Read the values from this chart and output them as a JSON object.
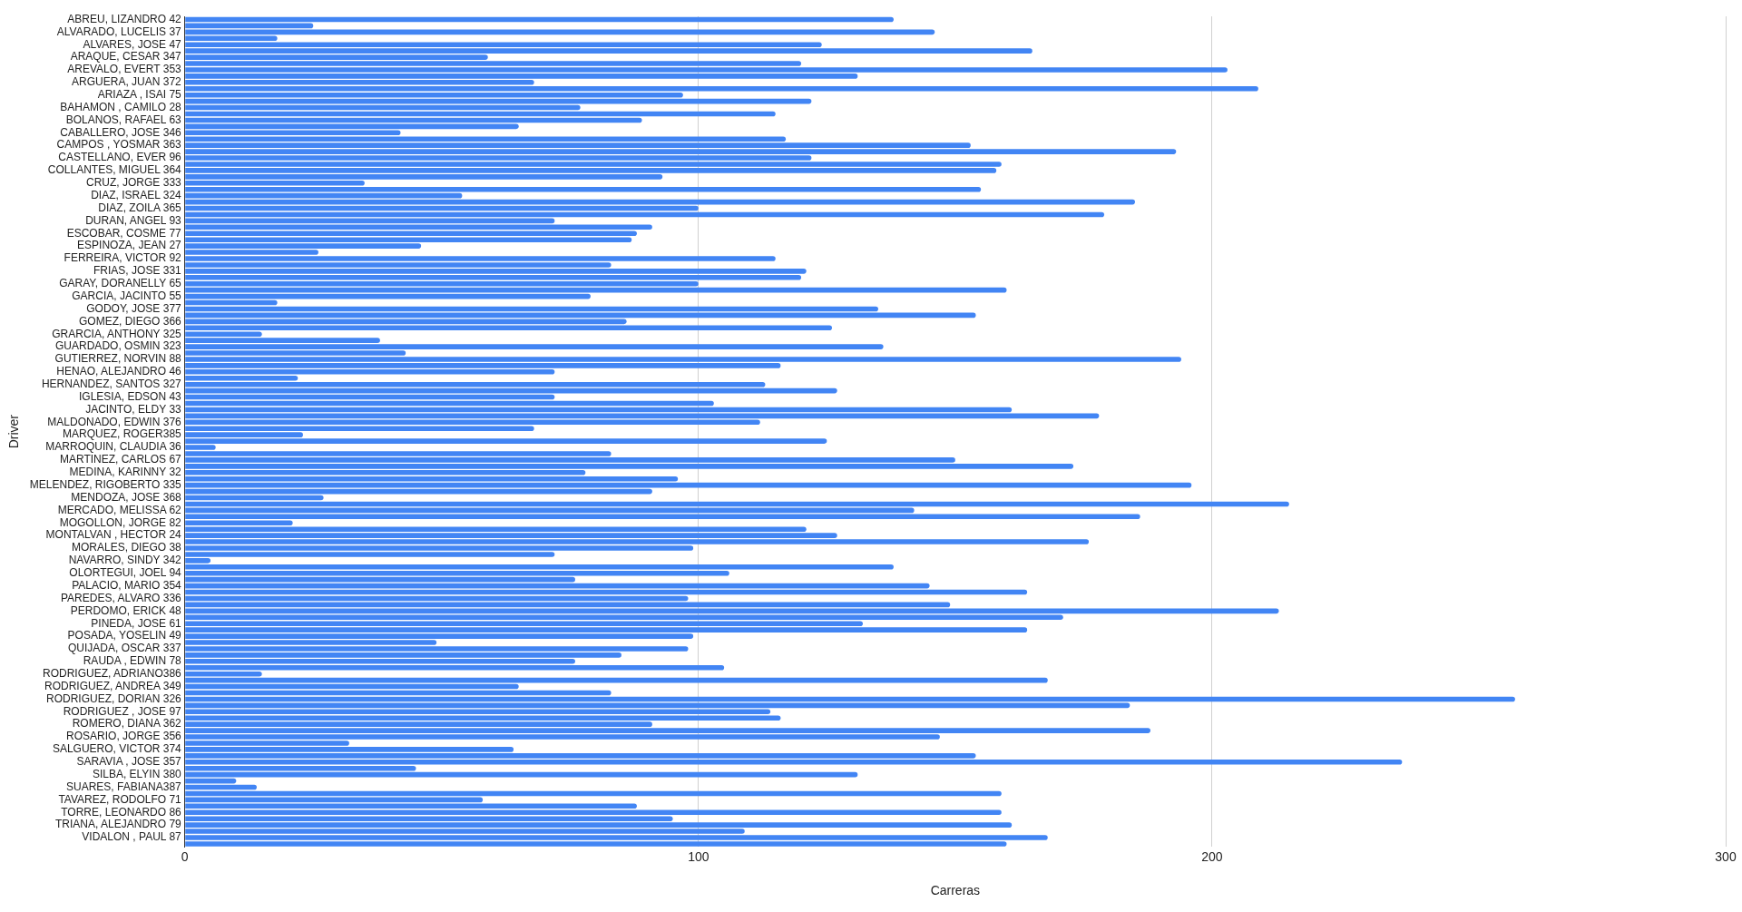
{
  "chart_data": {
    "type": "bar",
    "orientation": "horizontal",
    "xlabel": "Carreras",
    "ylabel": "Driver",
    "categories": [
      "ABREU, LIZANDRO 42",
      null,
      "ALVARADO, LUCELIS 37",
      null,
      "ALVARES, JOSE 47",
      null,
      "ARAQUE, CESAR 347",
      null,
      "AREVALO, EVERT 353",
      null,
      "ARGUERA, JUAN 372",
      null,
      "ARIAZA , ISAI 75",
      null,
      "BAHAMON , CAMILO 28",
      null,
      "BOLANOS, RAFAEL 63",
      null,
      "CABALLERO, JOSE 346",
      null,
      "CAMPOS , YOSMAR 363",
      null,
      "CASTELLANO, EVER 96",
      null,
      "COLLANTES, MIGUEL 364",
      null,
      "CRUZ, JORGE 333",
      null,
      "DIAZ, ISRAEL 324",
      null,
      "DIAZ, ZOILA 365",
      null,
      "DURAN, ANGEL 93",
      null,
      "ESCOBAR, COSME 77",
      null,
      "ESPINOZA, JEAN 27",
      null,
      "FERREIRA, VICTOR 92",
      null,
      "FRIAS, JOSE 331",
      null,
      "GARAY, DORANELLY 65",
      null,
      "GARCIA, JACINTO 55",
      null,
      "GODOY, JOSE 377",
      null,
      "GOMEZ, DIEGO 366",
      null,
      "GRARCIA, ANTHONY 325",
      null,
      "GUARDADO, OSMIN 323",
      null,
      "GUTIERREZ, NORVIN 88",
      null,
      "HENAO, ALEJANDRO 46",
      null,
      "HERNANDEZ, SANTOS 327",
      null,
      "IGLESIA, EDSON 43",
      null,
      "JACINTO, ELDY 33",
      null,
      "MALDONADO, EDWIN 376",
      null,
      "MARQUEZ, ROGER385",
      null,
      "MARROQUIN, CLAUDIA 36",
      null,
      "MARTINEZ, CARLOS 67",
      null,
      "MEDINA, KARINNY 32",
      null,
      "MELENDEZ, RIGOBERTO 335",
      null,
      "MENDOZA, JOSE 368",
      null,
      "MERCADO, MELISSA 62",
      null,
      "MOGOLLON, JORGE 82",
      null,
      "MONTALVAN , HECTOR 24",
      null,
      "MORALES, DIEGO 38",
      null,
      "NAVARRO, SINDY 342",
      null,
      "OLORTEGUI, JOEL 94",
      null,
      "PALACIO, MARIO 354",
      null,
      "PAREDES, ALVARO 336",
      null,
      "PERDOMO, ERICK 48",
      null,
      "PINEDA, JOSE 61",
      null,
      "POSADA, YOSELIN 49",
      null,
      "QUIJADA, OSCAR 337",
      null,
      "RAUDA , EDWIN 78",
      null,
      "RODRIGUEZ, ADRIANO386",
      null,
      "RODRIGUEZ, ANDREA 349",
      null,
      "RODRIGUEZ, DORIAN 326",
      null,
      "RODRIGUEZ , JOSE 97",
      null,
      "ROMERO, DIANA 362",
      null,
      "ROSARIO, JORGE 356",
      null,
      "SALGUERO, VICTOR 374",
      null,
      "SARAVIA , JOSE 357",
      null,
      "SILBA, ELYIN 380",
      null,
      "SUARES, FABIANA387",
      null,
      "TAVAREZ, RODOLFO 71",
      null,
      "TORRE, LEONARDO 86",
      null,
      "TRIANA, ALEJANDRO 79",
      null,
      "VIDALON , PAUL 87",
      null
    ],
    "values": [
      138,
      25,
      146,
      18,
      124,
      165,
      59,
      120,
      203,
      131,
      68,
      209,
      97,
      122,
      77,
      115,
      89,
      65,
      42,
      117,
      153,
      193,
      122,
      159,
      158,
      93,
      35,
      155,
      54,
      185,
      100,
      179,
      72,
      91,
      88,
      87,
      46,
      26,
      115,
      83,
      121,
      120,
      100,
      160,
      79,
      18,
      135,
      154,
      86,
      126,
      15,
      38,
      136,
      43,
      194,
      116,
      72,
      22,
      113,
      127,
      72,
      103,
      161,
      178,
      112,
      68,
      23,
      125,
      6,
      83,
      150,
      173,
      78,
      96,
      196,
      91,
      27,
      215,
      142,
      186,
      21,
      121,
      127,
      176,
      99,
      72,
      5,
      138,
      106,
      76,
      145,
      164,
      98,
      149,
      213,
      171,
      132,
      164,
      99,
      49,
      98,
      85,
      76,
      105,
      15,
      168,
      65,
      83,
      259,
      184,
      114,
      116,
      91,
      188,
      147,
      32,
      64,
      154,
      237,
      45,
      131,
      10,
      14,
      159,
      58,
      88,
      159,
      95,
      161,
      109,
      168,
      160
    ],
    "color": "#4285f4",
    "xlim": [
      0,
      300
    ],
    "xticks": [
      0,
      100,
      200,
      300
    ],
    "grid": "x",
    "legend": false
  }
}
